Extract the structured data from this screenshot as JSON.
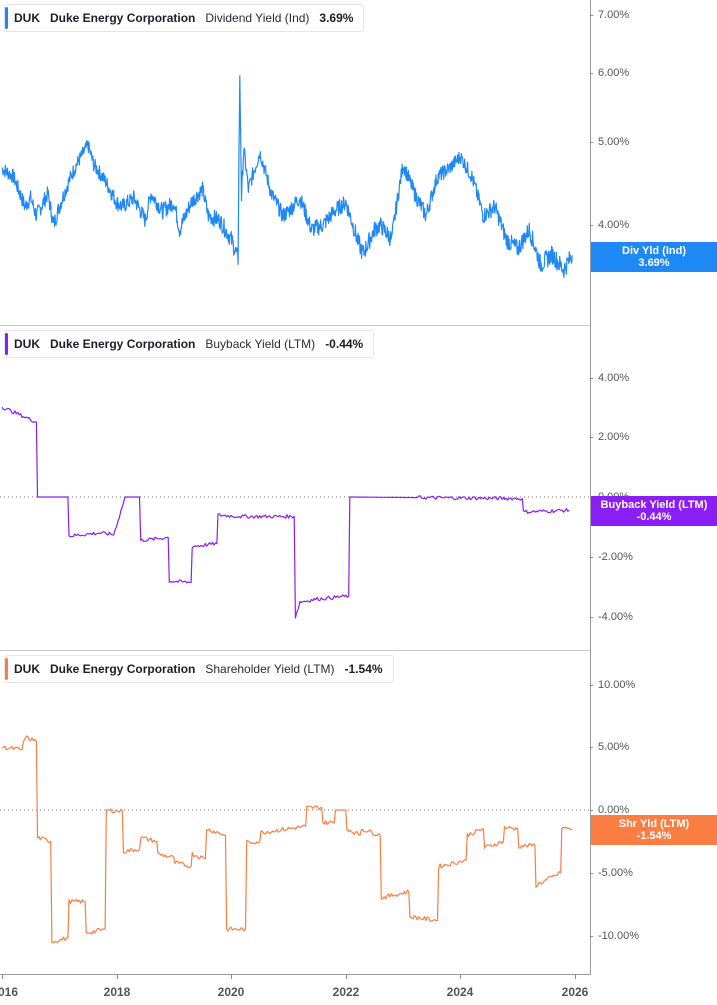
{
  "colors": {
    "dividend": "#1e88f5",
    "buyback": "#8a1ef5",
    "shareholder": "#fa7d43",
    "axis": "#9a9a9a",
    "separator": "#c8c8c8"
  },
  "panels": [
    {
      "ticker": "DUK",
      "company": "Duke Energy Corporation",
      "metric": "Dividend Yield (Ind)",
      "value": "3.69%",
      "badge_label": "Div Yld (Ind)",
      "badge_value": "3.69%",
      "y_ticks": [
        "7.00%",
        "6.00%",
        "5.00%",
        "4.00%"
      ]
    },
    {
      "ticker": "DUK",
      "company": "Duke Energy Corporation",
      "metric": "Buyback Yield (LTM)",
      "value": "-0.44%",
      "badge_label": "Buyback Yield (LTM)",
      "badge_value": "-0.44%",
      "y_ticks": [
        "4.00%",
        "2.00%",
        "0.00%",
        "-2.00%",
        "-4.00%"
      ]
    },
    {
      "ticker": "DUK",
      "company": "Duke Energy Corporation",
      "metric": "Shareholder Yield (LTM)",
      "value": "-1.54%",
      "badge_label": "Shr Yld (LTM)",
      "badge_value": "-1.54%",
      "y_ticks": [
        "10.00%",
        "5.00%",
        "0.00%",
        "-5.00%",
        "-10.00%"
      ]
    }
  ],
  "x_ticks": [
    "016",
    "2018",
    "2020",
    "2022",
    "2024",
    "2026"
  ],
  "chart_data": [
    {
      "type": "line",
      "title": "DUK Duke Energy Corporation Dividend Yield (Ind)",
      "series_name": "Dividend Yield (Ind)",
      "color": "#1e88f5",
      "yscale": "log",
      "ylim": [
        3.3,
        7.2
      ],
      "y_ticks": [
        7.0,
        6.0,
        5.0,
        4.0
      ],
      "x": [
        2016.0,
        2016.2,
        2016.4,
        2016.5,
        2016.6,
        2016.8,
        2016.9,
        2017.0,
        2017.2,
        2017.3,
        2017.5,
        2017.6,
        2017.8,
        2018.0,
        2018.1,
        2018.3,
        2018.5,
        2018.6,
        2018.8,
        2019.0,
        2019.1,
        2019.3,
        2019.5,
        2019.6,
        2019.8,
        2020.0,
        2020.12,
        2020.15,
        2020.18,
        2020.22,
        2020.3,
        2020.5,
        2020.7,
        2020.9,
        2021.0,
        2021.2,
        2021.4,
        2021.6,
        2021.8,
        2022.0,
        2022.2,
        2022.3,
        2022.5,
        2022.6,
        2022.8,
        2023.0,
        2023.2,
        2023.4,
        2023.6,
        2023.8,
        2024.0,
        2024.2,
        2024.4,
        2024.6,
        2024.8,
        2025.0,
        2025.2,
        2025.4,
        2025.6,
        2025.8,
        2025.95
      ],
      "values": [
        4.65,
        4.55,
        4.2,
        4.3,
        4.1,
        4.35,
        4.0,
        4.2,
        4.55,
        4.7,
        4.95,
        4.7,
        4.5,
        4.25,
        4.2,
        4.3,
        4.05,
        4.35,
        4.15,
        4.25,
        3.95,
        4.25,
        4.4,
        4.1,
        4.05,
        3.85,
        3.65,
        5.9,
        4.3,
        4.9,
        4.4,
        4.85,
        4.35,
        4.1,
        4.15,
        4.3,
        3.95,
        4.0,
        4.15,
        4.25,
        3.85,
        3.7,
        3.95,
        4.0,
        3.85,
        4.7,
        4.35,
        4.1,
        4.55,
        4.65,
        4.8,
        4.55,
        4.1,
        4.2,
        3.85,
        3.75,
        3.95,
        3.6,
        3.7,
        3.55,
        3.69
      ]
    },
    {
      "type": "line",
      "title": "DUK Duke Energy Corporation Buyback Yield (LTM)",
      "series_name": "Buyback Yield (LTM)",
      "color": "#8a1ef5",
      "ylim": [
        -4.5,
        5.0
      ],
      "y_ticks": [
        4.0,
        2.0,
        0.0,
        -2.0,
        -4.0
      ],
      "zero_line": true,
      "x": [
        2016.0,
        2016.3,
        2016.6,
        2016.62,
        2017.15,
        2017.17,
        2017.7,
        2017.95,
        2018.15,
        2018.4,
        2018.42,
        2018.9,
        2018.92,
        2019.3,
        2019.32,
        2019.75,
        2019.77,
        2020.15,
        2020.17,
        2021.1,
        2021.12,
        2021.2,
        2021.5,
        2022.05,
        2022.07,
        2025.08,
        2025.1,
        2025.9
      ],
      "values": [
        3.0,
        2.75,
        2.5,
        0.0,
        0.0,
        -1.3,
        -1.2,
        -1.25,
        0.0,
        0.0,
        -1.45,
        -1.35,
        -2.8,
        -2.85,
        -1.65,
        -1.55,
        -0.6,
        -0.65,
        -0.65,
        -0.65,
        -4.0,
        -3.5,
        -3.4,
        -3.3,
        0.0,
        -0.05,
        -0.5,
        -0.44
      ]
    },
    {
      "type": "line",
      "title": "DUK Duke Energy Corporation Shareholder Yield (LTM)",
      "series_name": "Shareholder Yield (LTM)",
      "color": "#fa7d43",
      "ylim": [
        -11.5,
        11.0
      ],
      "y_ticks": [
        10.0,
        5.0,
        0.0,
        -5.0,
        -10.0
      ],
      "zero_line": true,
      "x": [
        2016.0,
        2016.35,
        2016.4,
        2016.6,
        2016.62,
        2016.85,
        2016.87,
        2017.15,
        2017.17,
        2017.45,
        2017.47,
        2017.8,
        2017.82,
        2018.1,
        2018.12,
        2018.4,
        2018.42,
        2018.7,
        2018.72,
        2019.0,
        2019.02,
        2019.3,
        2019.32,
        2019.55,
        2019.57,
        2019.9,
        2019.92,
        2020.25,
        2020.27,
        2020.5,
        2020.52,
        2021.3,
        2021.32,
        2021.58,
        2021.6,
        2021.8,
        2021.82,
        2022.0,
        2022.02,
        2022.25,
        2022.27,
        2022.6,
        2022.62,
        2023.1,
        2023.12,
        2023.6,
        2023.62,
        2024.1,
        2024.12,
        2024.4,
        2024.42,
        2024.75,
        2024.77,
        2025.0,
        2025.02,
        2025.3,
        2025.32,
        2025.75,
        2025.77,
        2025.95
      ],
      "values": [
        5.0,
        4.8,
        5.8,
        5.5,
        -2.2,
        -2.5,
        -10.5,
        -10.2,
        -7.3,
        -7.3,
        -9.8,
        -9.5,
        0.0,
        -0.1,
        -3.3,
        -3.1,
        -2.2,
        -2.5,
        -3.5,
        -3.8,
        -4.2,
        -4.5,
        -3.5,
        -3.9,
        -1.5,
        -2.0,
        -9.5,
        -9.5,
        -2.6,
        -2.5,
        -1.8,
        -1.3,
        0.2,
        0.2,
        -1.0,
        -1.0,
        0.0,
        0.0,
        -1.5,
        -2.0,
        -1.5,
        -2.0,
        -7.0,
        -6.5,
        -8.5,
        -8.8,
        -4.5,
        -4.0,
        -2.0,
        -1.5,
        -3.0,
        -2.5,
        -1.4,
        -1.5,
        -2.9,
        -2.8,
        -6.0,
        -5.0,
        -1.4,
        -1.54
      ]
    }
  ]
}
